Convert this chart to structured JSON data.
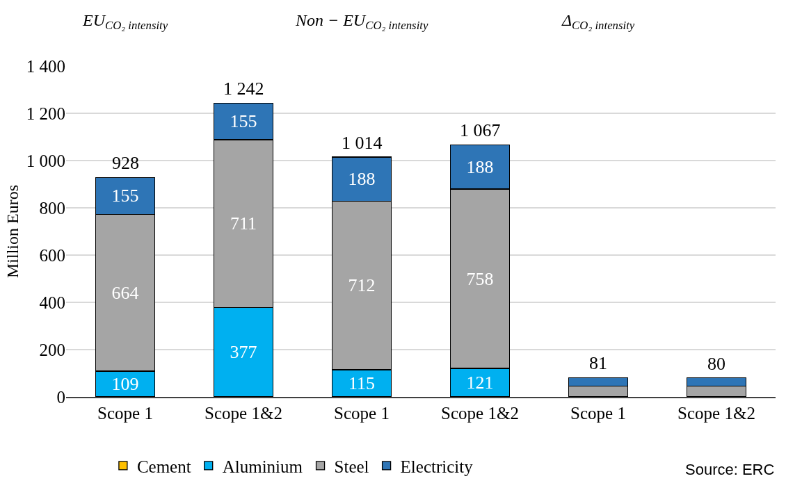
{
  "chart_data": {
    "type": "bar",
    "stacked": true,
    "ylabel": "Million Euros",
    "categories": [
      "Scope 1",
      "Scope 1&2",
      "Scope 1",
      "Scope 1&2",
      "Scope 1",
      "Scope 1&2"
    ],
    "series": [
      {
        "name": "Cement",
        "color": "#ffc000",
        "values": [
          0,
          0,
          0,
          0,
          0,
          0
        ],
        "value_labels": [
          null,
          null,
          null,
          null,
          null,
          null
        ]
      },
      {
        "name": "Aluminium",
        "color": "#00b0f0",
        "values": [
          109,
          377,
          115,
          121,
          0,
          0
        ],
        "value_labels": [
          "109",
          "377",
          "115",
          "121",
          null,
          null
        ]
      },
      {
        "name": "Steel",
        "color": "#a5a5a5",
        "values": [
          664,
          711,
          712,
          758,
          46,
          46
        ],
        "value_labels": [
          "664",
          "711",
          "712",
          "758",
          null,
          null
        ]
      },
      {
        "name": "Electricity",
        "color": "#2e75b6",
        "values": [
          155,
          155,
          188,
          188,
          35,
          34
        ],
        "value_labels": [
          "155",
          "155",
          "188",
          "188",
          null,
          null
        ]
      }
    ],
    "totals": [
      "928",
      "1 242",
      "1 014",
      "1 067",
      "81",
      "80"
    ],
    "ylim": [
      0,
      1400
    ],
    "yticks": [
      0,
      200,
      400,
      600,
      800,
      {
        "value": 1000,
        "label": "1 000"
      },
      {
        "value": 1200,
        "label": "1 200"
      },
      {
        "value": 1400,
        "label": "1 400"
      }
    ],
    "grid": "y",
    "legend": "bottom",
    "annotations": [
      "EU$_{CO₂ intensity}$",
      "Non − EU$_{CO₂ intensity}$",
      "Δ$_{CO₂ intensity}$",
      "Source: ERC"
    ]
  }
}
